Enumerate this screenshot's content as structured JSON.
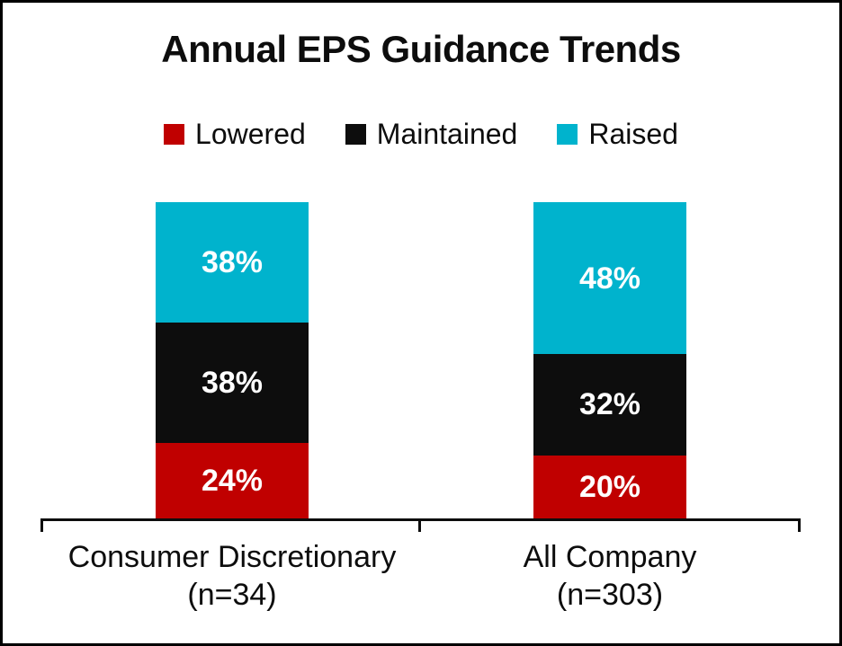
{
  "chart_data": {
    "type": "bar",
    "stacked": true,
    "percent": true,
    "title": "Annual EPS Guidance Trends",
    "categories": [
      "Consumer Discretionary (n=34)",
      "All Company (n=303)"
    ],
    "category_labels": [
      [
        "Consumer Discretionary",
        "(n=34)"
      ],
      [
        "All Company",
        "(n=303)"
      ]
    ],
    "series": [
      {
        "name": "Lowered",
        "color": "#c00000",
        "values": [
          24,
          20
        ]
      },
      {
        "name": "Maintained",
        "color": "#0d0d0d",
        "values": [
          38,
          32
        ]
      },
      {
        "name": "Raised",
        "color": "#00b3cd",
        "values": [
          38,
          48
        ]
      }
    ],
    "stack_order": "bottom-to-top: Lowered, Maintained, Raised",
    "value_suffix": "%",
    "data_label_color": "#ffffff",
    "ylim": [
      0,
      100
    ],
    "grid": false,
    "legend_position": "top",
    "axis_color": "#0d0d0d",
    "background": "#ffffff",
    "frame_border_color": "#000000"
  }
}
